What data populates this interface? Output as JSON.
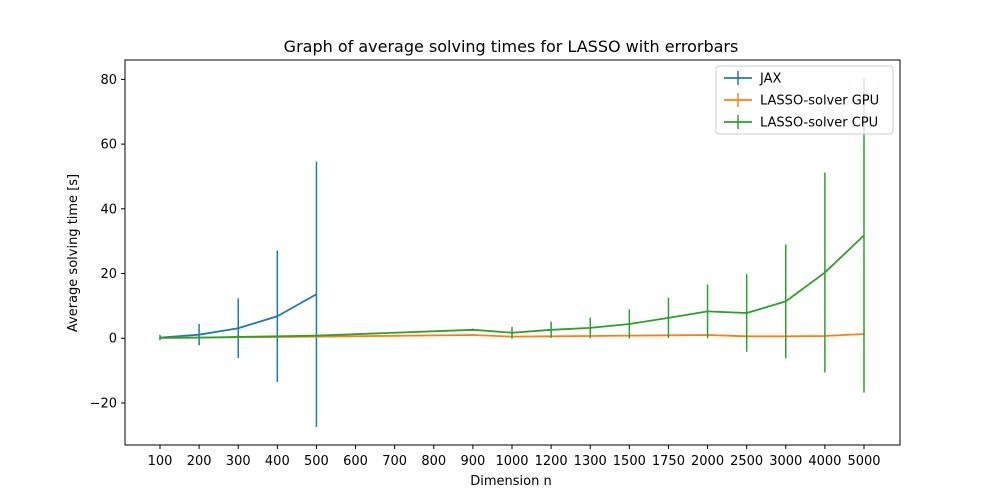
{
  "chart_data": {
    "type": "line",
    "title": "Graph of average solving times for LASSO with errorbars",
    "xlabel": "Dimension n",
    "ylabel": "Average solving time [s]",
    "x_scale": "categorical",
    "categories": [
      "100",
      "200",
      "300",
      "400",
      "500",
      "600",
      "700",
      "800",
      "900",
      "1000",
      "1200",
      "1300",
      "1500",
      "1750",
      "2000",
      "2500",
      "3000",
      "4000",
      "5000"
    ],
    "ylim": [
      -33,
      86
    ],
    "yticks": [
      -20,
      0,
      20,
      40,
      60,
      80
    ],
    "grid": false,
    "legend": "top-right",
    "series": [
      {
        "name": "JAX",
        "color": "#1f77b4",
        "points": [
          {
            "x": "100",
            "y": 0.2,
            "err": 0.8
          },
          {
            "x": "200",
            "y": 1.1,
            "err": 3.3
          },
          {
            "x": "300",
            "y": 3.1,
            "err": 9.2
          },
          {
            "x": "400",
            "y": 6.8,
            "err": 20.3
          },
          {
            "x": "500",
            "y": 13.6,
            "err": 41.0
          }
        ]
      },
      {
        "name": "LASSO-solver GPU",
        "color": "#ff7f0e",
        "points": [
          {
            "x": "100",
            "y": 0.1,
            "err": 0.2
          },
          {
            "x": "200",
            "y": 0.2,
            "err": 0.2
          },
          {
            "x": "300",
            "y": 0.3,
            "err": 0.2
          },
          {
            "x": "400",
            "y": 0.4,
            "err": 0.2
          },
          {
            "x": "500",
            "y": 0.5,
            "err": 0.2
          },
          {
            "x": "900",
            "y": 1.0,
            "err": 0.2
          },
          {
            "x": "1000",
            "y": 0.5,
            "err": 0.2
          },
          {
            "x": "1200",
            "y": 0.6,
            "err": 0.2
          },
          {
            "x": "1300",
            "y": 0.7,
            "err": 0.2
          },
          {
            "x": "1500",
            "y": 0.8,
            "err": 0.2
          },
          {
            "x": "1750",
            "y": 0.9,
            "err": 0.2
          },
          {
            "x": "2000",
            "y": 1.0,
            "err": 0.2
          },
          {
            "x": "2500",
            "y": 0.6,
            "err": 0.2
          },
          {
            "x": "3000",
            "y": 0.6,
            "err": 0.2
          },
          {
            "x": "4000",
            "y": 0.7,
            "err": 0.2
          },
          {
            "x": "5000",
            "y": 1.3,
            "err": 0.3
          }
        ]
      },
      {
        "name": "LASSO-solver CPU",
        "color": "#2ca02c",
        "points": [
          {
            "x": "100",
            "y": 0.1,
            "err": 0.2
          },
          {
            "x": "200",
            "y": 0.2,
            "err": 0.3
          },
          {
            "x": "300",
            "y": 0.4,
            "err": 0.3
          },
          {
            "x": "400",
            "y": 0.6,
            "err": 0.3
          },
          {
            "x": "500",
            "y": 0.8,
            "err": 0.3
          },
          {
            "x": "900",
            "y": 2.6,
            "err": 0.4
          },
          {
            "x": "1000",
            "y": 1.7,
            "err": 1.8
          },
          {
            "x": "1200",
            "y": 2.6,
            "err": 2.5
          },
          {
            "x": "1300",
            "y": 3.2,
            "err": 3.2
          },
          {
            "x": "1500",
            "y": 4.4,
            "err": 4.5
          },
          {
            "x": "1750",
            "y": 6.3,
            "err": 6.2
          },
          {
            "x": "2000",
            "y": 8.3,
            "err": 8.3
          },
          {
            "x": "2500",
            "y": 7.8,
            "err": 12.0
          },
          {
            "x": "3000",
            "y": 11.4,
            "err": 17.6
          },
          {
            "x": "4000",
            "y": 20.3,
            "err": 30.9
          },
          {
            "x": "5000",
            "y": 31.8,
            "err": 48.6
          }
        ]
      }
    ]
  }
}
